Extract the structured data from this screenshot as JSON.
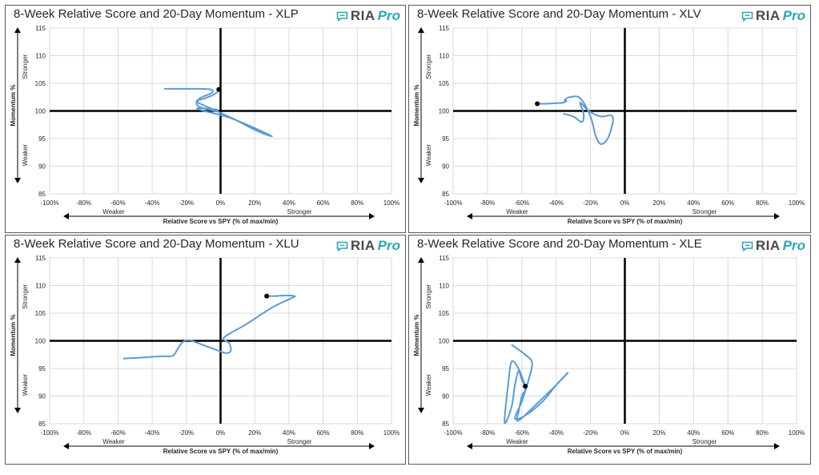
{
  "logo": {
    "text": "RIA",
    "pro": "Pro",
    "accent": "#2aa6b8"
  },
  "series_color": "#5b9bd5",
  "chart_data": [
    {
      "type": "line",
      "title": "8-Week Relative Score and 20-Day Momentum - XLP",
      "xlabel": "Relative Score vs SPY (% of max/min)",
      "ylabel": "Momentum %",
      "x_left_label": "Weaker",
      "x_right_label": "Stronger",
      "y_top_label": "Stronger",
      "y_bottom_label": "Weaker",
      "xlim": [
        -100,
        100
      ],
      "ylim": [
        85,
        115
      ],
      "xticks": [
        "-100%",
        "-80%",
        "-60%",
        "-40%",
        "-20%",
        "0%",
        "20%",
        "40%",
        "60%",
        "80%",
        "100%"
      ],
      "yticks": [
        "85",
        "90",
        "95",
        "100",
        "105",
        "110",
        "115"
      ],
      "grid": true,
      "series": [
        {
          "x": [
            -33,
            -15,
            -6,
            -5,
            -12,
            -14,
            -10,
            -3,
            -2,
            -2,
            -5,
            -9,
            -13,
            -12,
            5,
            20,
            30,
            22,
            8,
            -6,
            -14,
            -10,
            -5,
            -2,
            -1
          ],
          "y": [
            104,
            104,
            103.9,
            103.3,
            102.3,
            101.2,
            100.5,
            100.3,
            100.1,
            99.9,
            100.1,
            100.4,
            100.5,
            100.2,
            98.8,
            96.9,
            95.4,
            96.3,
            98.5,
            100.5,
            101.7,
            102.2,
            102.8,
            103.4,
            103.9
          ]
        }
      ],
      "endpoint": {
        "x": -1,
        "y": 103.9
      }
    },
    {
      "type": "line",
      "title": "8-Week Relative Score and 20-Day Momentum - XLV",
      "xlabel": "Relative Score vs SPY (% of max/min)",
      "ylabel": "Momentum %",
      "x_left_label": "Weaker",
      "x_right_label": "Stronger",
      "y_top_label": "Stronger",
      "y_bottom_label": "Weaker",
      "xlim": [
        -100,
        100
      ],
      "ylim": [
        85,
        115
      ],
      "xticks": [
        "-100%",
        "-80%",
        "-60%",
        "-40%",
        "-20%",
        "0%",
        "20%",
        "40%",
        "60%",
        "80%",
        "100%"
      ],
      "yticks": [
        "85",
        "90",
        "95",
        "100",
        "105",
        "110",
        "115"
      ],
      "grid": true,
      "series": [
        {
          "x": [
            -36,
            -30,
            -25,
            -24,
            -26,
            -21,
            -14,
            -8,
            -7,
            -10,
            -14,
            -17,
            -20,
            -26,
            -32,
            -35,
            -34,
            -36,
            -40,
            -46,
            -51
          ],
          "y": [
            99.5,
            99,
            98,
            99.5,
            101.5,
            100,
            99,
            99.2,
            98,
            95,
            94,
            95.5,
            99,
            102.3,
            102.5,
            102,
            101.8,
            101.5,
            101.4,
            101.3,
            101.3
          ]
        }
      ],
      "endpoint": {
        "x": -51,
        "y": 101.3
      }
    },
    {
      "type": "line",
      "title": "8-Week Relative Score and 20-Day Momentum - XLU",
      "xlabel": "Relative Score vs SPY (% of max/min)",
      "ylabel": "Momentum %",
      "x_left_label": "Weaker",
      "x_right_label": "Stronger",
      "y_top_label": "Stronger",
      "y_bottom_label": "Weaker",
      "xlim": [
        -100,
        100
      ],
      "ylim": [
        85,
        115
      ],
      "xticks": [
        "-100%",
        "-80%",
        "-60%",
        "-40%",
        "-20%",
        "0%",
        "20%",
        "40%",
        "60%",
        "80%",
        "100%"
      ],
      "yticks": [
        "85",
        "90",
        "95",
        "100",
        "105",
        "110",
        "115"
      ],
      "grid": true,
      "series": [
        {
          "x": [
            -57,
            -45,
            -35,
            -28,
            -25,
            -22,
            -18,
            -10,
            -2,
            3,
            6,
            5,
            2,
            15,
            30,
            42,
            43,
            38,
            32,
            27
          ],
          "y": [
            96.8,
            97,
            97.2,
            97.3,
            98.6,
            99.8,
            100.1,
            99.2,
            98.3,
            97.8,
            98.2,
            99.6,
            100.6,
            103,
            106,
            107.8,
            108.1,
            108.2,
            108.1,
            108.1
          ]
        }
      ],
      "endpoint": {
        "x": 27,
        "y": 108.1
      }
    },
    {
      "type": "line",
      "title": "8-Week Relative Score and 20-Day Momentum - XLE",
      "xlabel": "Relative Score vs SPY (% of max/min)",
      "ylabel": "Momentum %",
      "x_left_label": "Weaker",
      "x_right_label": "Stronger",
      "y_top_label": "Stronger",
      "y_bottom_label": "Weaker",
      "xlim": [
        -100,
        100
      ],
      "ylim": [
        85,
        115
      ],
      "xticks": [
        "-100%",
        "-80%",
        "-60%",
        "-40%",
        "-20%",
        "0%",
        "20%",
        "40%",
        "60%",
        "80%",
        "100%"
      ],
      "yticks": [
        "85",
        "90",
        "95",
        "100",
        "105",
        "110",
        "115"
      ],
      "grid": true,
      "series": [
        {
          "x": [
            -66,
            -58,
            -54,
            -56,
            -60,
            -64,
            -58,
            -48,
            -40,
            -33,
            -40,
            -50,
            -60,
            -63,
            -62,
            -60,
            -58,
            -62,
            -66,
            -68,
            -70,
            -66,
            -64,
            -62,
            -60,
            -58
          ],
          "y": [
            99.3,
            97.5,
            96,
            93,
            89,
            86,
            86.5,
            89,
            92,
            94.3,
            92,
            89,
            86,
            85.6,
            87,
            90,
            91.5,
            95,
            96.2,
            92,
            85.2,
            88,
            92,
            94.5,
            93,
            91.8
          ]
        }
      ],
      "endpoint": {
        "x": -58,
        "y": 91.8
      }
    }
  ]
}
